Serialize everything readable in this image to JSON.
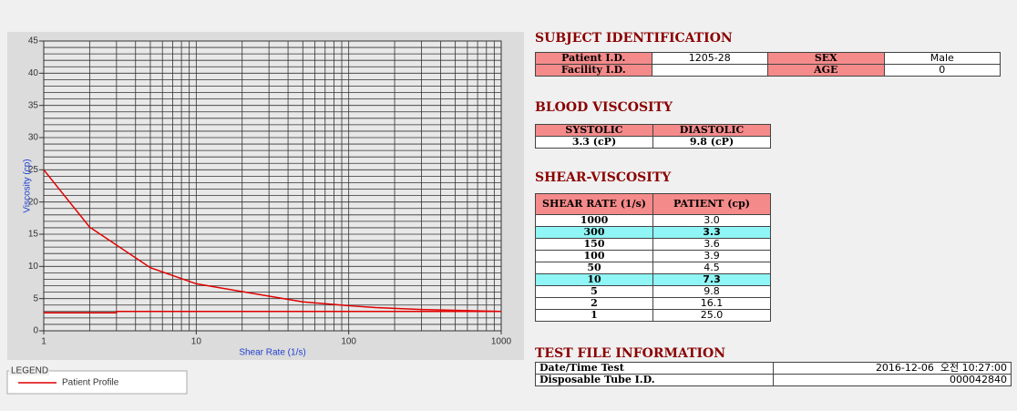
{
  "chart_data": {
    "type": "line",
    "xlabel": "Shear Rate (1/s)",
    "ylabel": "Viscosity (cp)",
    "xlog": true,
    "xlim": [
      1,
      1000
    ],
    "xticks": [
      1,
      10,
      100,
      1000
    ],
    "ylim": [
      0,
      45
    ],
    "yticks": [
      0,
      5,
      10,
      15,
      20,
      25,
      30,
      35,
      40,
      45
    ],
    "grid": true,
    "legend_title": "LEGEND",
    "series": [
      {
        "name": "Patient Profile",
        "color": "#e00000",
        "x": [
          1,
          2,
          5,
          10,
          50,
          100,
          150,
          300,
          1000
        ],
        "values": [
          25,
          16.1,
          9.8,
          7.3,
          4.5,
          3.9,
          3.6,
          3.3,
          3.0
        ]
      },
      {
        "color": "#e00000",
        "x": [
          1,
          3,
          3,
          1000
        ],
        "values": [
          2.8,
          2.8,
          3.0,
          3.0
        ]
      }
    ]
  },
  "subject": {
    "title": "SUBJECT IDENTIFICATION",
    "rows": [
      [
        "Patient I.D.",
        "1205-28",
        "SEX",
        "Male"
      ],
      [
        "Facility I.D.",
        null,
        "AGE",
        "0"
      ]
    ]
  },
  "blood": {
    "title": "BLOOD VISCOSITY",
    "headers": [
      "SYSTOLIC",
      "DIASTOLIC"
    ],
    "values": [
      "3.3 (cP)",
      "9.8 (cP)"
    ]
  },
  "shear": {
    "title": "SHEAR-VISCOSITY",
    "headers": [
      "SHEAR RATE (1/s)",
      "PATIENT (cp)"
    ],
    "highlight_rows": [
      1,
      5
    ],
    "rows": [
      [
        "1000",
        "3.0"
      ],
      [
        "300",
        "3.3"
      ],
      [
        "150",
        "3.6"
      ],
      [
        "100",
        "3.9"
      ],
      [
        "50",
        "4.5"
      ],
      [
        "10",
        "7.3"
      ],
      [
        "5",
        "9.8"
      ],
      [
        "2",
        "16.1"
      ],
      [
        "1",
        "25.0"
      ]
    ]
  },
  "testfile": {
    "title": "TEST FILE INFORMATION",
    "rows": [
      [
        "Date/Time Test",
        "2016-12-06  오전 10:27:00"
      ],
      [
        "Disposable Tube I.D.",
        "000042840"
      ]
    ]
  }
}
